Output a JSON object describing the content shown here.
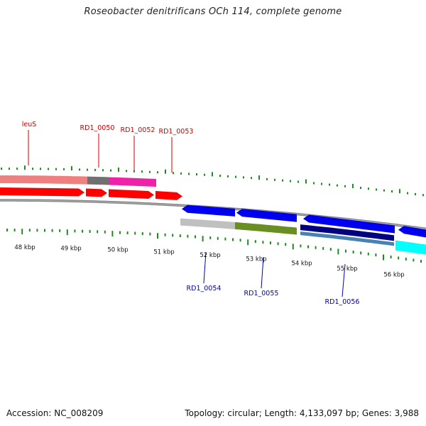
{
  "title": "Roseobacter denitrificans OCh 114, complete genome",
  "footer": {
    "accession": "Accession: NC_008209",
    "summary": "Topology: circular; Length: 4,133,097 bp; Genes: 3,988"
  },
  "colors": {
    "forward_label": "#cc0000",
    "reverse_label": "#0000aa",
    "tick": "#1f8a1f",
    "backbone": "#808080"
  },
  "scale_labels": [
    "48 kbp",
    "49 kbp",
    "50 kbp",
    "51 kbp",
    "52 kbp",
    "53 kbp",
    "54 kbp",
    "55 kbp",
    "56 kbp"
  ],
  "forward_genes": [
    {
      "label": "leuS",
      "color": "#ff0000"
    },
    {
      "label": "RD1_0050",
      "color": "#ff0000"
    },
    {
      "label": "RD1_0052",
      "color": "#ff0000"
    },
    {
      "label": "RD1_0053",
      "color": "#ff0000"
    }
  ],
  "reverse_genes": [
    {
      "label": "RD1_0054",
      "color": "#0000ee"
    },
    {
      "label": "RD1_0055",
      "color": "#0000ee"
    },
    {
      "label": "RD1_0056",
      "color": "#0000ee"
    }
  ],
  "feature_tracks": {
    "outer_segments": [
      {
        "name": "segment-1",
        "color": "#f08080"
      },
      {
        "name": "segment-2",
        "color": "#707070"
      },
      {
        "name": "segment-3",
        "color": "#ee22aa"
      }
    ],
    "inner_segments": [
      {
        "name": "segment-1",
        "color": "#c0c0c0"
      },
      {
        "name": "segment-2",
        "color": "#6b8e23"
      },
      {
        "name": "segment-3",
        "color": "#000080"
      },
      {
        "name": "segment-4",
        "color": "#4682b4"
      },
      {
        "name": "segment-5",
        "color": "#00ffff"
      }
    ]
  }
}
